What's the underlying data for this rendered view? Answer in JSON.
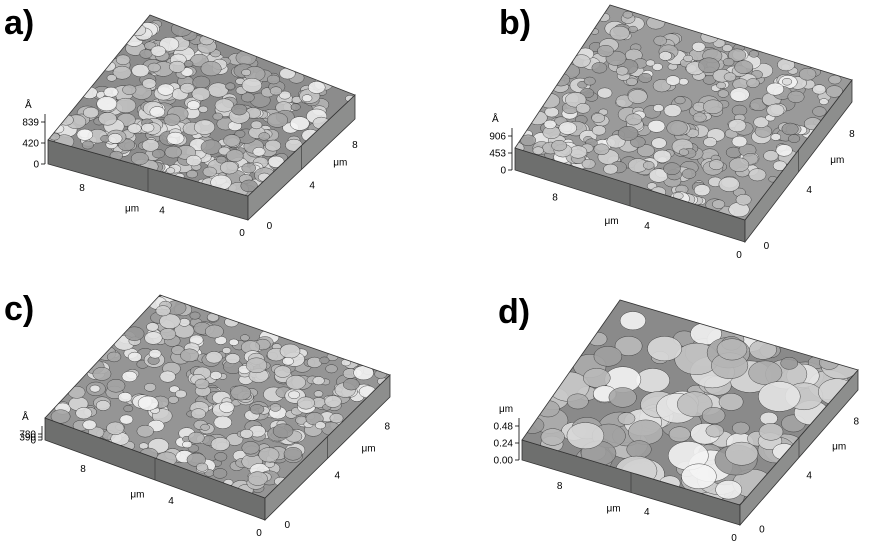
{
  "panels": [
    {
      "letter": "a)",
      "z_unit": "Å",
      "z_ticks": [
        "839",
        "420",
        "0"
      ],
      "x_unit": "μm",
      "x_ticks": [
        "8",
        "4",
        "0"
      ],
      "y_unit": "μm",
      "y_ticks": [
        "8",
        "4",
        "0"
      ],
      "surface_tone": "#8c8c8c"
    },
    {
      "letter": "b)",
      "z_unit": "Å",
      "z_ticks": [
        "906",
        "453",
        "0"
      ],
      "x_unit": "μm",
      "x_ticks": [
        "8",
        "4",
        "0"
      ],
      "y_unit": "μm",
      "y_ticks": [
        "8",
        "4",
        "0"
      ],
      "surface_tone": "#9a9a9a"
    },
    {
      "letter": "c)",
      "z_unit": "Å",
      "z_ticks": [
        "780",
        "390",
        "0"
      ],
      "x_unit": "μm",
      "x_ticks": [
        "8",
        "4",
        "0"
      ],
      "y_unit": "μm",
      "y_ticks": [
        "8",
        "4",
        "0"
      ],
      "surface_tone": "#959595"
    },
    {
      "letter": "d)",
      "z_unit": "μm",
      "z_ticks": [
        "0.48",
        "0.24",
        "0.00"
      ],
      "x_unit": "μm",
      "x_ticks": [
        "8",
        "4",
        "0"
      ],
      "y_unit": "μm",
      "y_ticks": [
        "8",
        "4",
        "0"
      ],
      "surface_tone": "#8a8a8a"
    }
  ]
}
